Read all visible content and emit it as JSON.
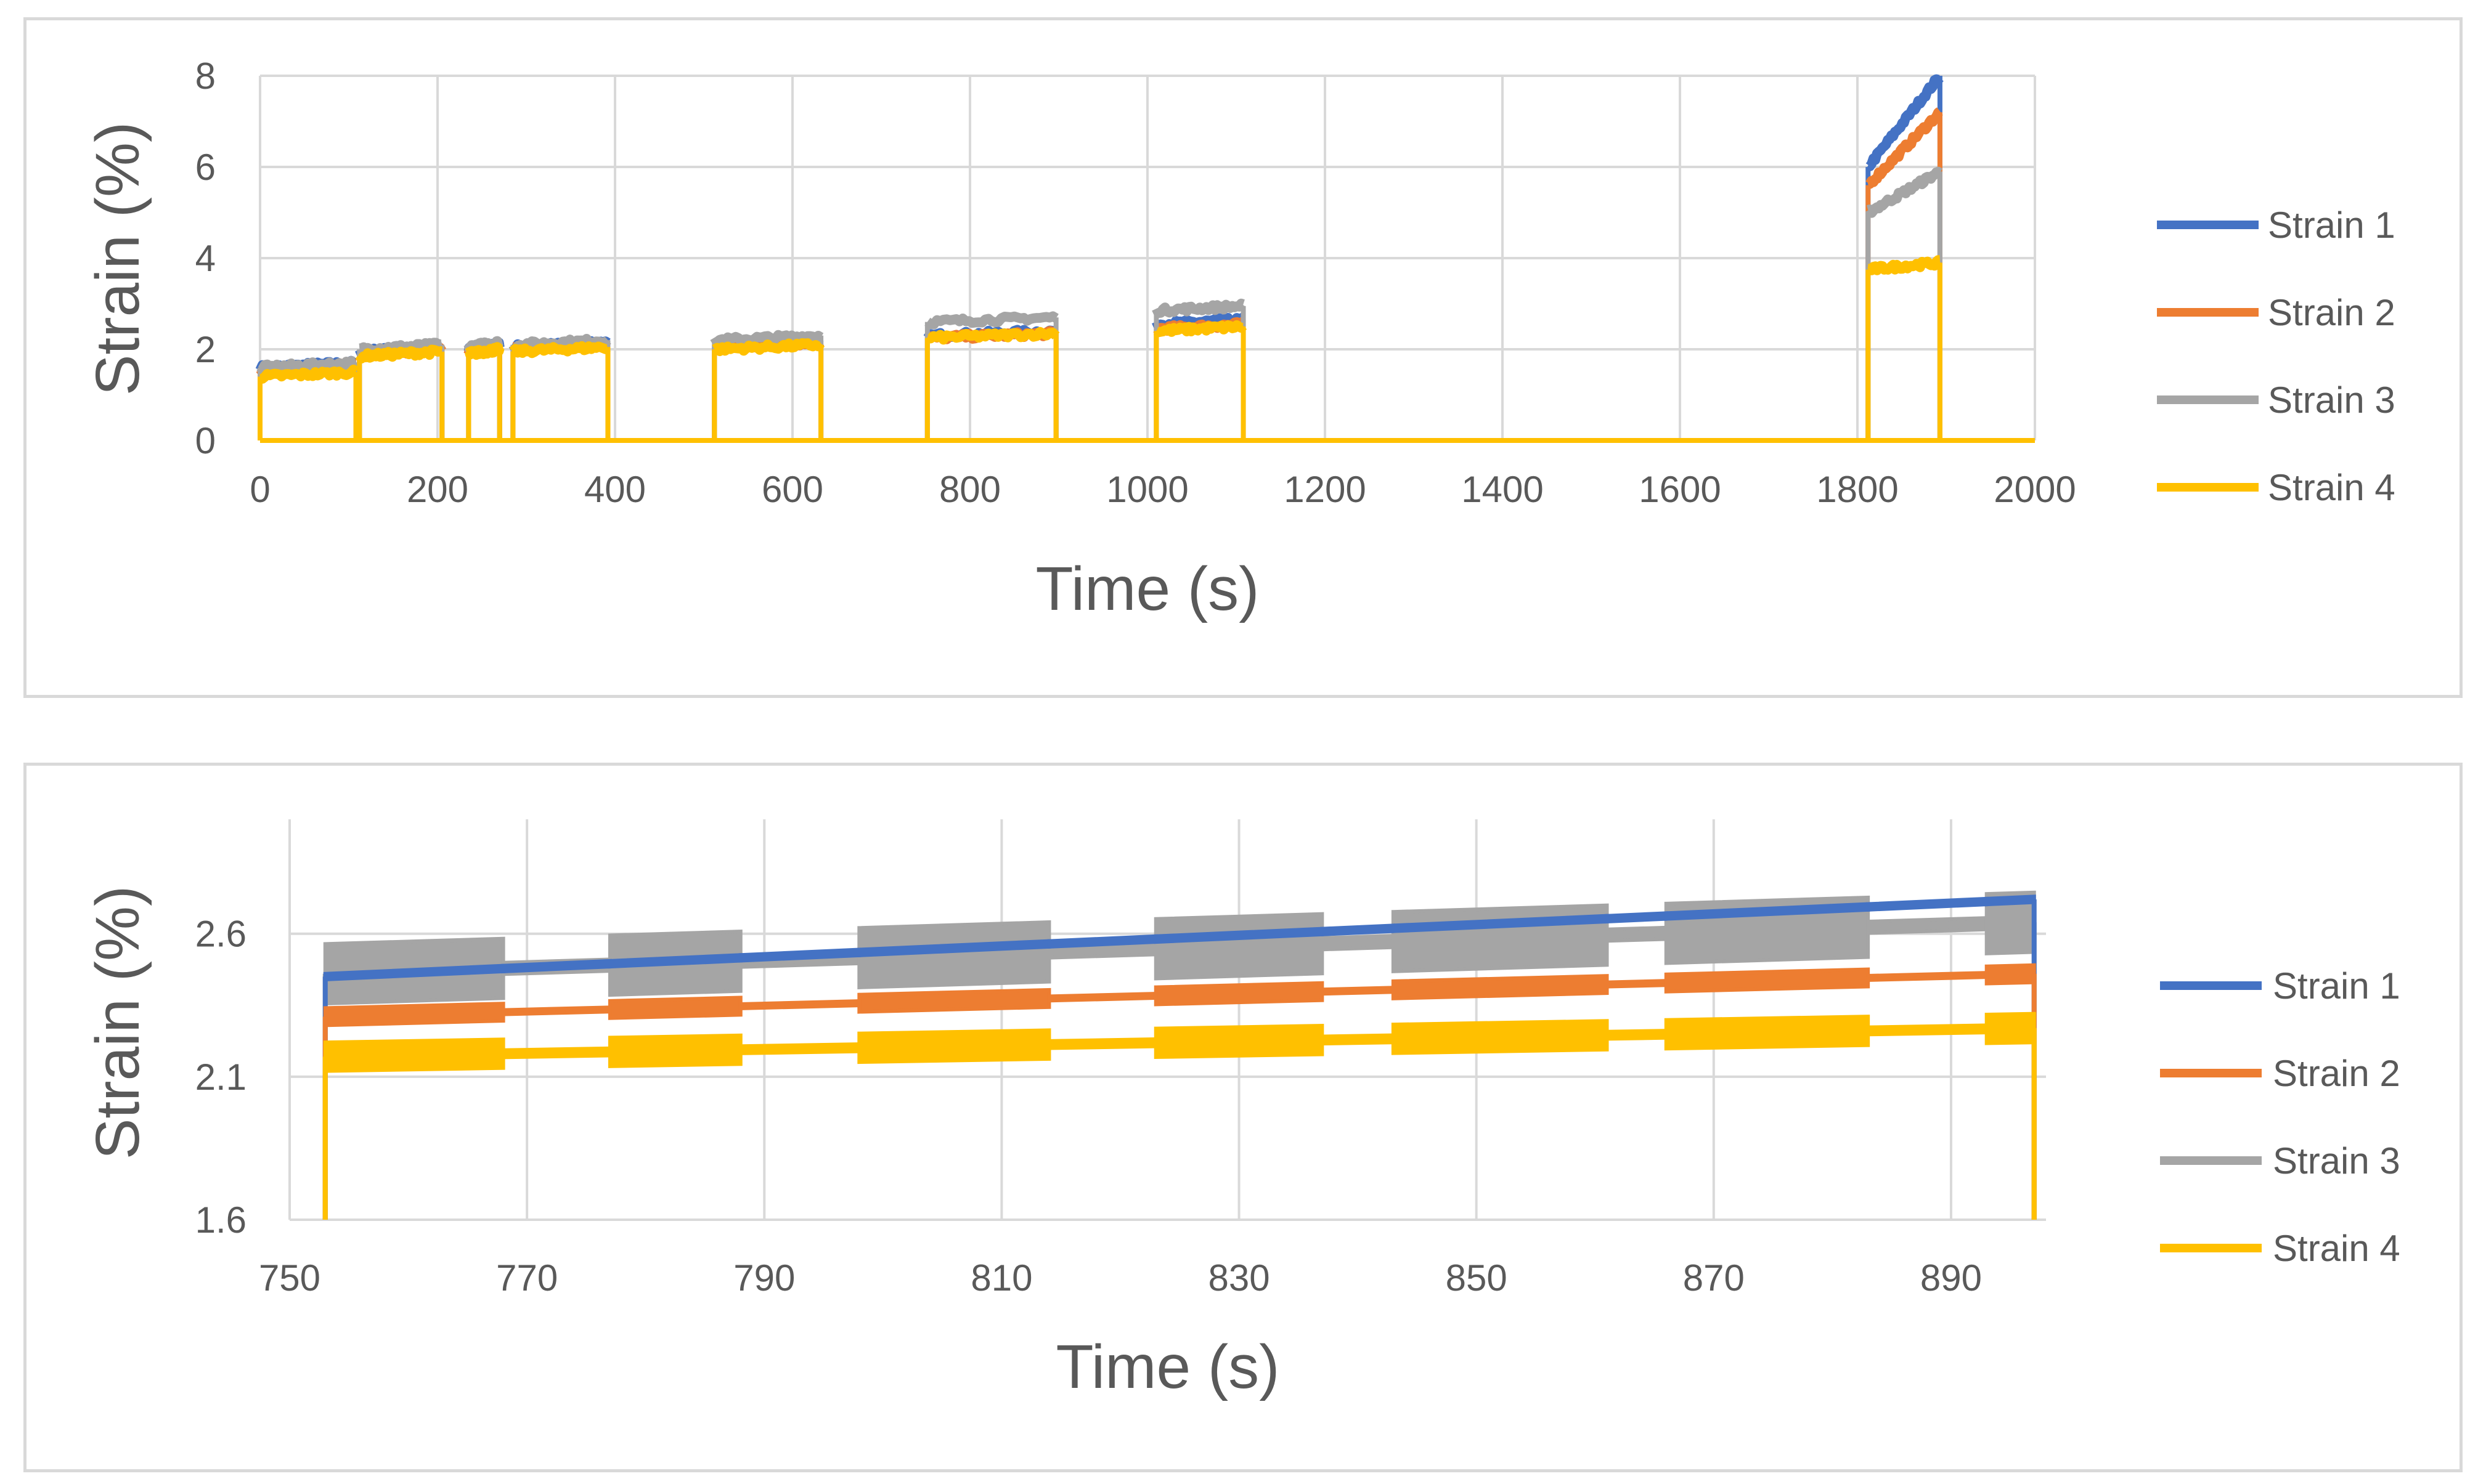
{
  "chart_data": [
    {
      "type": "line",
      "title": "",
      "xlabel": "Time (s)",
      "ylabel": "Strain (%)",
      "xlim": [
        0,
        2000
      ],
      "ylim": [
        0,
        8
      ],
      "xticks": [
        0,
        200,
        400,
        600,
        800,
        1000,
        1200,
        1400,
        1600,
        1800,
        2000
      ],
      "yticks": [
        0,
        2,
        4,
        6,
        8
      ],
      "grid": true,
      "legend_position": "right",
      "segments": [
        [
          0,
          108
        ],
        [
          112,
          205
        ],
        [
          235,
          270
        ],
        [
          285,
          392
        ],
        [
          512,
          632
        ],
        [
          752,
          897
        ],
        [
          1010,
          1108
        ],
        [
          1812,
          1893
        ]
      ],
      "series": [
        {
          "name": "Strain 1",
          "color": "#4472C4",
          "values": [
            1.6,
            1.95,
            2.0,
            2.05,
            2.1,
            2.3,
            2.55,
            6.0,
            8.0
          ]
        },
        {
          "name": "Strain 2",
          "color": "#ED7D31",
          "values": [
            1.55,
            1.9,
            1.95,
            2.0,
            2.05,
            2.25,
            2.45,
            5.6,
            7.2
          ]
        },
        {
          "name": "Strain 3",
          "color": "#A5A5A5",
          "values": [
            1.6,
            2.0,
            2.05,
            2.1,
            2.2,
            2.6,
            2.85,
            5.0,
            5.9
          ]
        },
        {
          "name": "Strain 4",
          "color": "#FFC000",
          "values": [
            1.4,
            1.85,
            1.9,
            1.95,
            2.0,
            2.25,
            2.4,
            3.75,
            3.9
          ]
        }
      ]
    },
    {
      "type": "line",
      "title": "",
      "xlabel": "Time (s)",
      "ylabel": "Strain (%)",
      "xlim": [
        750,
        898
      ],
      "ylim": [
        1.6,
        3.0
      ],
      "xticks": [
        750,
        770,
        790,
        810,
        830,
        850,
        870,
        890
      ],
      "yticks": [
        1.6,
        2.1,
        2.6
      ],
      "grid": true,
      "legend_position": "right",
      "segments": [
        [
          753,
          768
        ],
        [
          768,
          777
        ],
        [
          777,
          788
        ],
        [
          788,
          798
        ],
        [
          798,
          814
        ],
        [
          814,
          823
        ],
        [
          823,
          837
        ],
        [
          837,
          843
        ],
        [
          843,
          861
        ],
        [
          861,
          866
        ],
        [
          866,
          883
        ],
        [
          883,
          893
        ],
        [
          893,
          897
        ]
      ],
      "series": [
        {
          "name": "Strain 1",
          "color": "#4472C4",
          "start": [
            753,
            2.45
          ],
          "end": [
            897,
            2.72
          ]
        },
        {
          "name": "Strain 2",
          "color": "#ED7D31",
          "start": [
            753,
            2.31
          ],
          "end": [
            897,
            2.46
          ]
        },
        {
          "name": "Strain 3",
          "color": "#A5A5A5",
          "start": [
            753,
            2.46
          ],
          "end": [
            897,
            2.64
          ]
        },
        {
          "name": "Strain 4",
          "color": "#FFC000",
          "start": [
            753,
            2.17
          ],
          "end": [
            897,
            2.27
          ]
        }
      ]
    }
  ]
}
